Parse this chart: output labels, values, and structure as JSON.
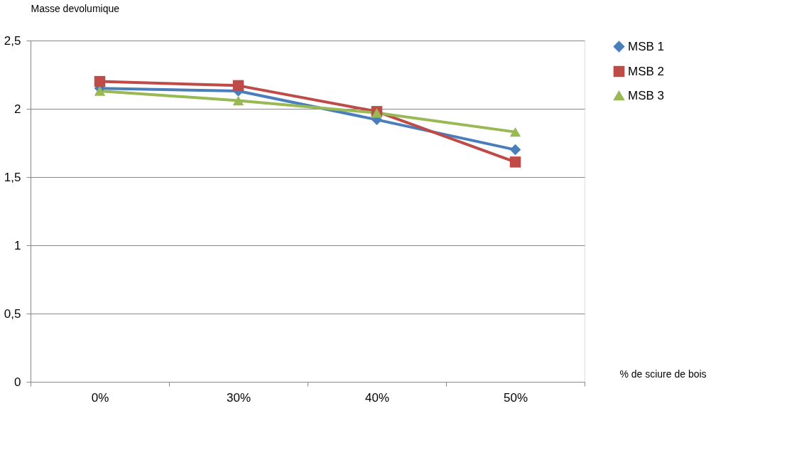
{
  "chart_data": {
    "type": "line",
    "xlabel": "% de sciure de bois",
    "ylabel": "Masse devolumique",
    "categories": [
      "0%",
      "30%",
      "40%",
      "50%"
    ],
    "series": [
      {
        "name": "MSB 1",
        "color": "#4a7ebb",
        "marker": "diamond",
        "values": [
          2.15,
          2.13,
          1.92,
          1.7
        ]
      },
      {
        "name": "MSB 2",
        "color": "#be4b48",
        "marker": "square",
        "values": [
          2.2,
          2.17,
          1.98,
          1.61
        ]
      },
      {
        "name": "MSB 3",
        "color": "#98b954",
        "marker": "triangle",
        "values": [
          2.13,
          2.06,
          1.97,
          1.83
        ]
      }
    ],
    "ylim": [
      0,
      2.5
    ],
    "yticks": [
      {
        "value": 0,
        "label": "0"
      },
      {
        "value": 0.5,
        "label": "0,5"
      },
      {
        "value": 1,
        "label": "1"
      },
      {
        "value": 1.5,
        "label": "1,5"
      },
      {
        "value": 2,
        "label": "2"
      },
      {
        "value": 2.5,
        "label": "2,5"
      }
    ],
    "grid": "y",
    "legend": "right",
    "line_style": "solid"
  }
}
